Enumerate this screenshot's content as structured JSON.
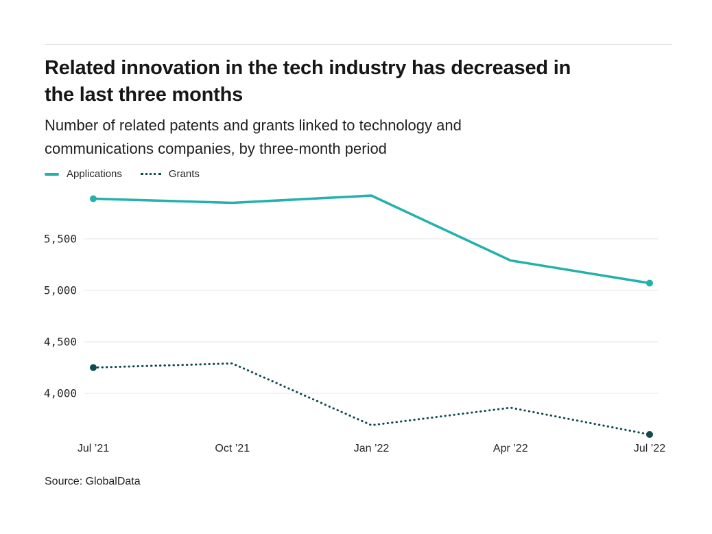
{
  "page": {
    "background_color": "#ffffff",
    "rule_color": "#d9d9d9"
  },
  "header": {
    "title_lines": [
      "Related innovation in the tech industry has decreased in",
      "the last three months"
    ],
    "subtitle_lines": [
      "Number of related patents and grants linked to technology and",
      "communications companies, by three-month period"
    ]
  },
  "legend": {
    "items": [
      {
        "label": "Applications",
        "swatch": "solid-line",
        "color": "#22b1ab"
      },
      {
        "label": "Grants",
        "swatch": "dotted-line",
        "color": "#104b50"
      }
    ]
  },
  "chart_data": {
    "type": "line",
    "title": "Related innovation in the tech industry has decreased in the last three months",
    "subtitle": "Number of related patents and grants linked to technology and communications companies, by three-month period",
    "categories": [
      "Jul ’21",
      "Oct ’21",
      "Jan ’22",
      "Apr ’22",
      "Jul ’22"
    ],
    "series": [
      {
        "name": "Applications",
        "line_style": "solid",
        "color": "#22b1ab",
        "markers": "first-last",
        "values": [
          5890,
          5850,
          5920,
          5290,
          5070
        ]
      },
      {
        "name": "Grants",
        "line_style": "dotted",
        "color": "#104b50",
        "markers": "first-last",
        "values": [
          4250,
          4290,
          3690,
          3860,
          3600
        ]
      }
    ],
    "y_axis": {
      "ticks": [
        {
          "value": 5500,
          "label": "5,500"
        },
        {
          "value": 5000,
          "label": "5,000"
        },
        {
          "value": 4500,
          "label": "4,500"
        },
        {
          "value": 4000,
          "label": "4,000"
        }
      ],
      "grid": true,
      "grid_color": "#e9e9e9"
    },
    "xlabel": "",
    "ylabel": "",
    "ylim": [
      3550,
      5950
    ],
    "legend_position": "top-left"
  },
  "footer": {
    "source": "Source: GlobalData"
  }
}
